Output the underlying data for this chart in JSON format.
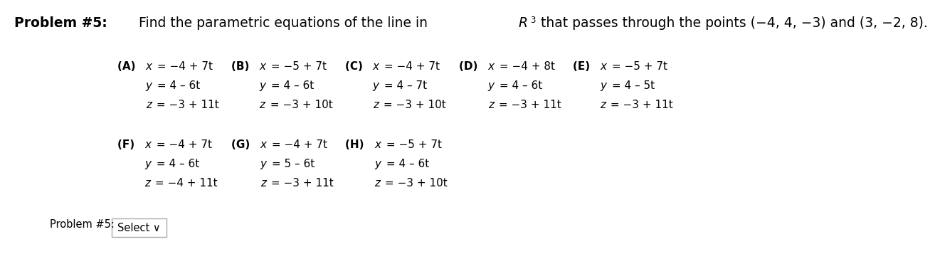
{
  "title_bold": "Problem #5:",
  "title_normal": " Find the parametric equations of the line in ",
  "title_R": "R",
  "title_exp": "3",
  "title_end": " that passes through the points (−4, 4, −3) and (3, −2, 8).",
  "bg_color": "#ffffff",
  "options": [
    {
      "label": "(A)",
      "lines": [
        "x = −4 + 7t",
        "y = 4 – 6t",
        "z = −3 + 11t"
      ]
    },
    {
      "label": "(B)",
      "lines": [
        "x = −5 + 7t",
        "y = 4 – 6t",
        "z = −3 + 10t"
      ]
    },
    {
      "label": "(C)",
      "lines": [
        "x = −4 + 7t",
        "y = 4 – 7t",
        "z = −3 + 10t"
      ]
    },
    {
      "label": "(D)",
      "lines": [
        "x = −4 + 8t",
        "y = 4 – 6t",
        "z = −3 + 11t"
      ]
    },
    {
      "label": "(E)",
      "lines": [
        "x = −5 + 7t",
        "y = 4 – 5t",
        "z = −3 + 11t"
      ]
    },
    {
      "label": "(F)",
      "lines": [
        "x = −4 + 7t",
        "y = 4 – 6t",
        "z = −4 + 11t"
      ]
    },
    {
      "label": "(G)",
      "lines": [
        "x = −4 + 7t",
        "y = 5 – 6t",
        "z = −3 + 11t"
      ]
    },
    {
      "label": "(H)",
      "lines": [
        "x = −5 + 7t",
        "y = 4 – 6t",
        "z = −3 + 10t"
      ]
    }
  ],
  "footer_label": "Problem #5:",
  "footer_button": "Select ∨",
  "row1_indices": [
    0,
    1,
    2,
    3,
    4
  ],
  "row2_indices": [
    5,
    6,
    7
  ],
  "title_fs": 13.5,
  "label_fs": 11.0,
  "eq_fs": 11.0,
  "footer_fs": 10.5,
  "btn_fs": 10.5
}
